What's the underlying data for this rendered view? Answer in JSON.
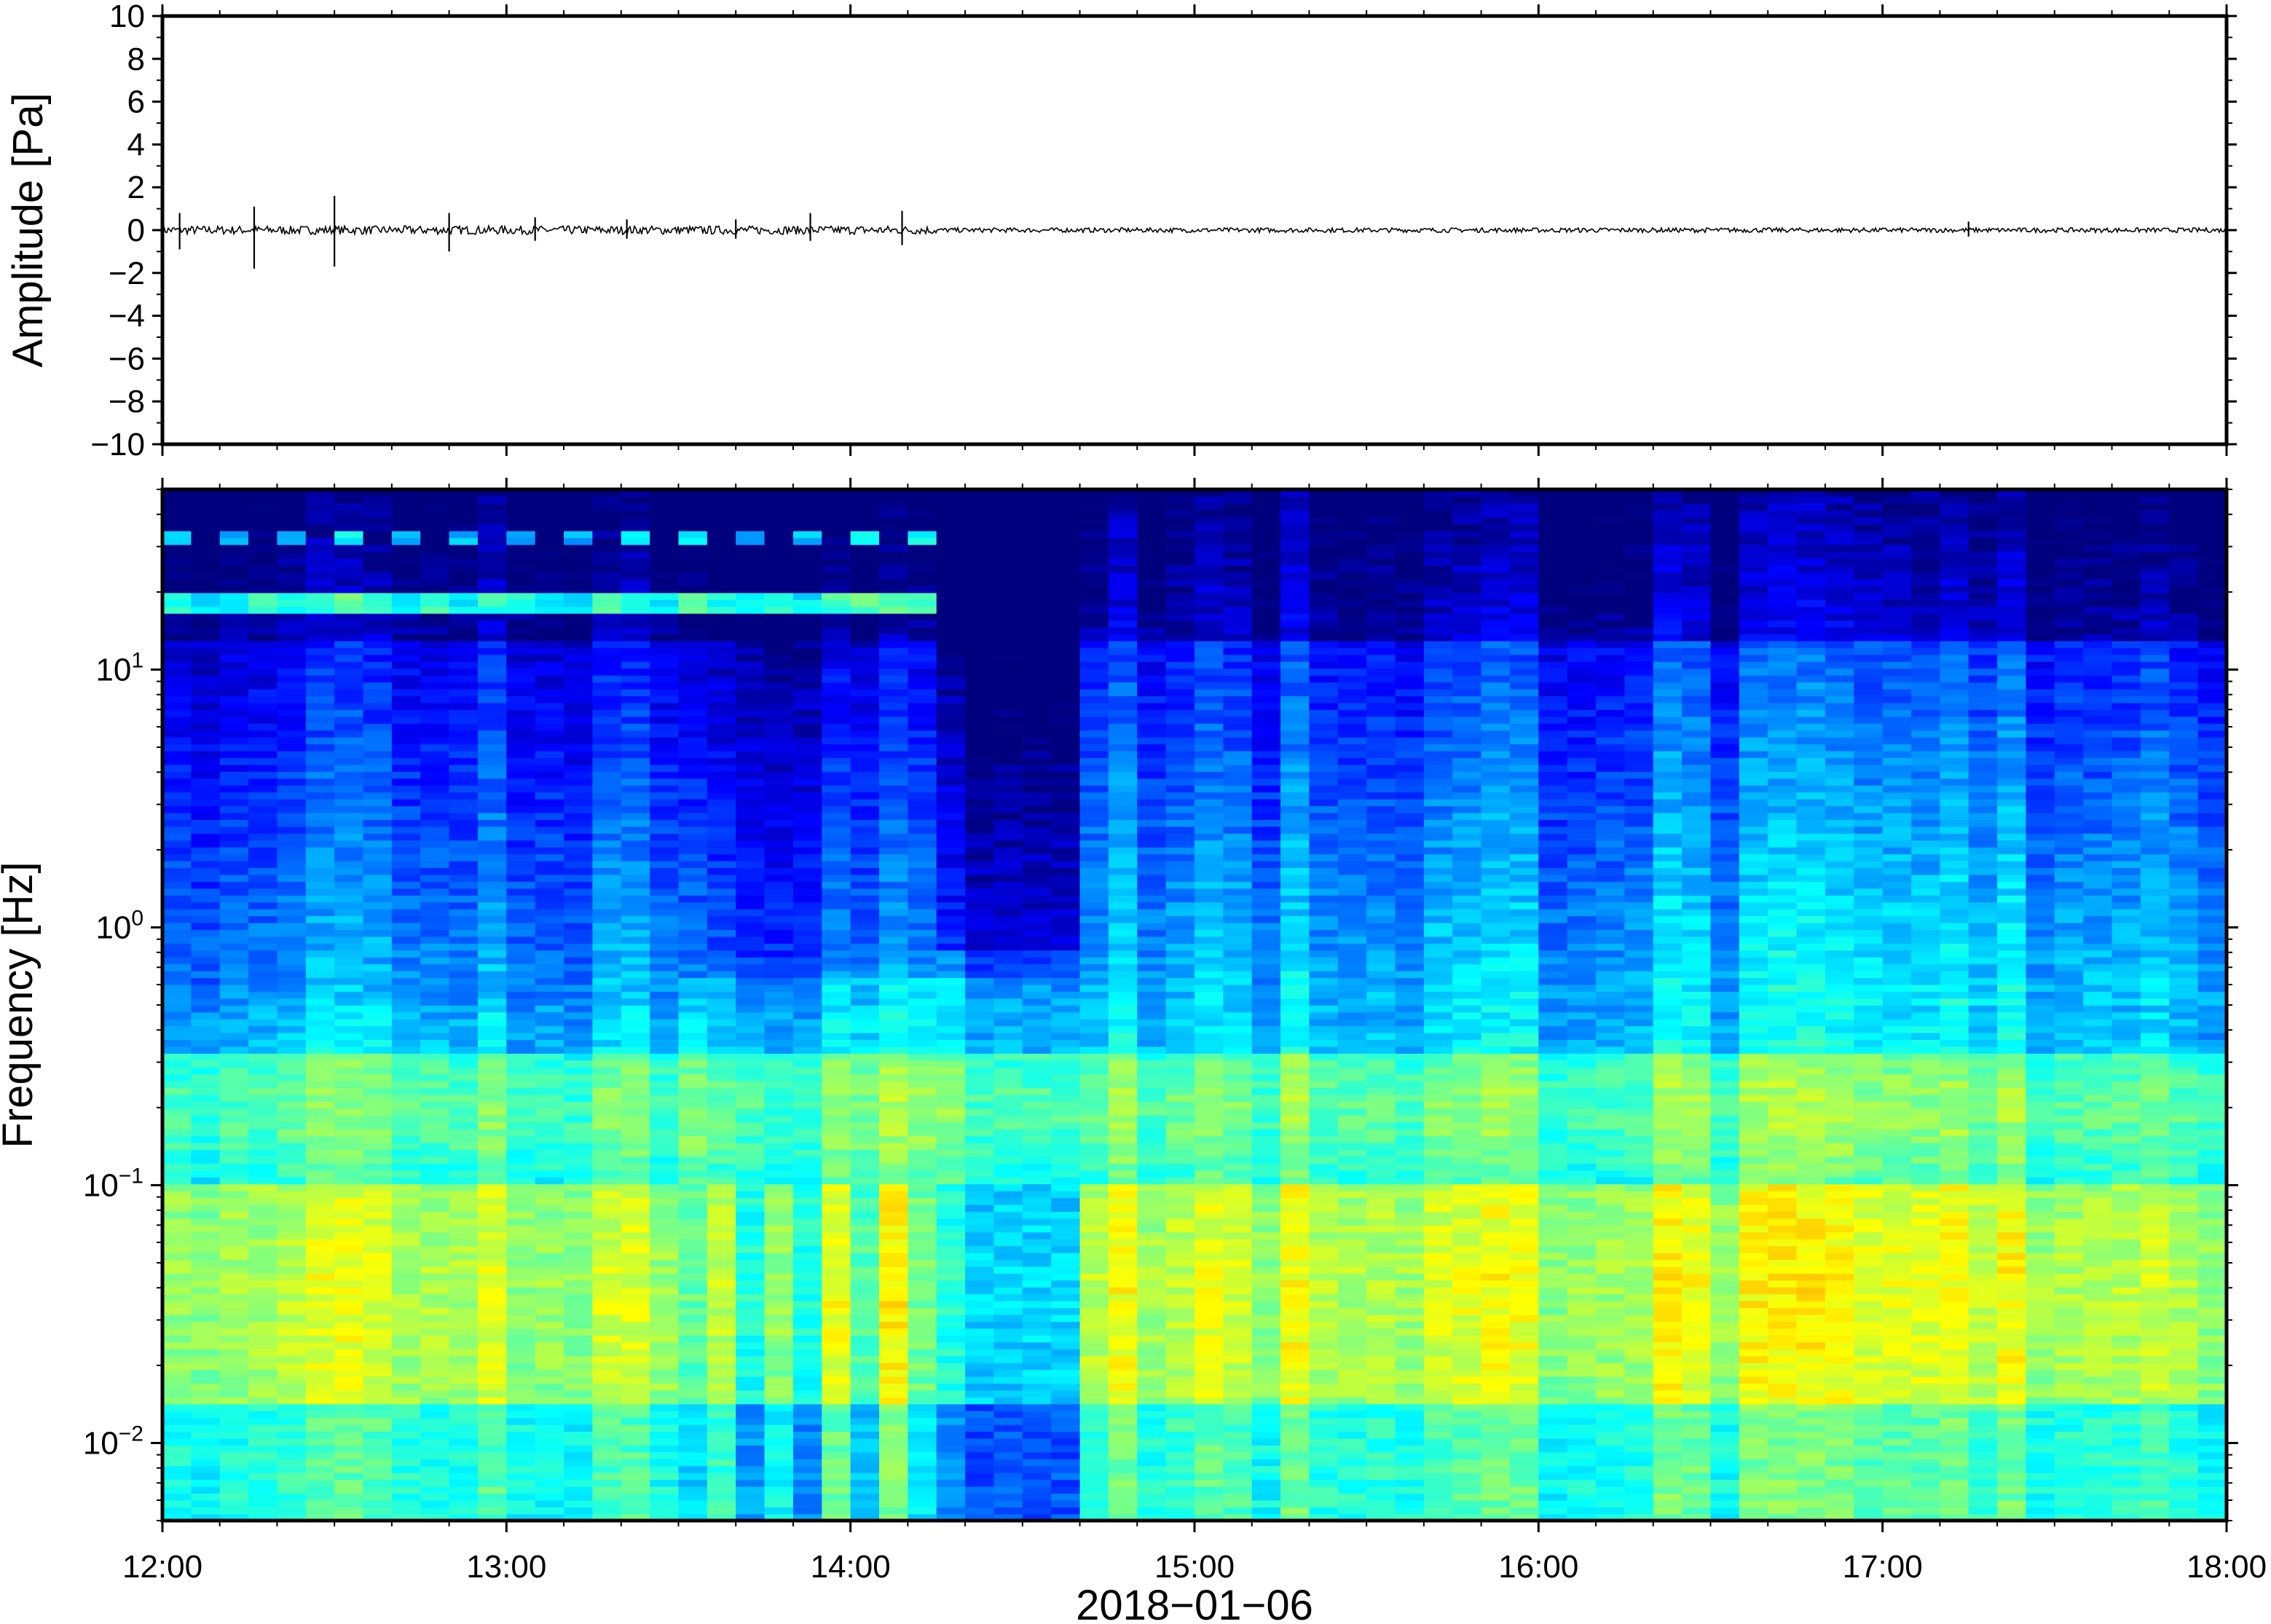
{
  "chart_data": [
    {
      "type": "line",
      "panel": "waveform",
      "title": "",
      "ylabel": "Amplitude [Pa]",
      "ylim": [
        -10,
        10
      ],
      "yticks": [
        {
          "value": 10,
          "label": "10"
        },
        {
          "value": 8,
          "label": "8"
        },
        {
          "value": 6,
          "label": "6"
        },
        {
          "value": 4,
          "label": "4"
        },
        {
          "value": 2,
          "label": "2"
        },
        {
          "value": 0,
          "label": "0"
        },
        {
          "value": -2,
          "label": "−2"
        },
        {
          "value": -4,
          "label": "−4"
        },
        {
          "value": -6,
          "label": "−6"
        },
        {
          "value": -8,
          "label": "−8"
        },
        {
          "value": -10,
          "label": "−10"
        }
      ],
      "xlim": [
        "12:00",
        "18:00"
      ],
      "series": [
        {
          "color": "#000000",
          "baseline_amplitude": 0.2,
          "spikes": [
            {
              "time": "12:03",
              "min": -0.9,
              "max": 0.8
            },
            {
              "time": "12:16",
              "min": -1.8,
              "max": 1.1
            },
            {
              "time": "12:30",
              "min": -1.7,
              "max": 1.6
            },
            {
              "time": "12:50",
              "min": -1.0,
              "max": 0.8
            },
            {
              "time": "13:05",
              "min": -0.5,
              "max": 0.6
            },
            {
              "time": "13:21",
              "min": -0.4,
              "max": 0.5
            },
            {
              "time": "13:40",
              "min": -0.4,
              "max": 0.5
            },
            {
              "time": "13:53",
              "min": -0.5,
              "max": 0.8
            },
            {
              "time": "14:09",
              "min": -0.7,
              "max": 0.9
            },
            {
              "time": "17:15",
              "min": -0.3,
              "max": 0.4
            }
          ]
        }
      ]
    },
    {
      "type": "heatmap",
      "panel": "spectrogram",
      "title": "",
      "ylabel": "Frequency [Hz]",
      "xlabel": "2018−01−06",
      "yscale": "log",
      "ylim": [
        0.005,
        50
      ],
      "yticks": [
        {
          "value": 10,
          "base": "10",
          "exp": "1"
        },
        {
          "value": 1,
          "base": "10",
          "exp": "0"
        },
        {
          "value": 0.1,
          "base": "10",
          "exp": "−1"
        },
        {
          "value": 0.01,
          "base": "10",
          "exp": "−2"
        }
      ],
      "xlim": [
        "12:00",
        "18:00"
      ],
      "xticks": [
        "12:00",
        "13:00",
        "14:00",
        "15:00",
        "16:00",
        "17:00",
        "18:00"
      ],
      "colormap": [
        "#00007f",
        "#0000ff",
        "#0080ff",
        "#00ffff",
        "#80ff80",
        "#ffff00",
        "#ff8000",
        "#ff0000"
      ],
      "power_scale": "relative 0–1",
      "features": {
        "microseism_band_hz": [
          0.02,
          0.1
        ],
        "secondary_band_hz": [
          0.15,
          0.3
        ],
        "tonal_lines_hz": [
          18,
          32
        ],
        "tonal_lines_until": "14:13",
        "quiet_interval": [
          "14:15",
          "14:40"
        ]
      }
    }
  ]
}
